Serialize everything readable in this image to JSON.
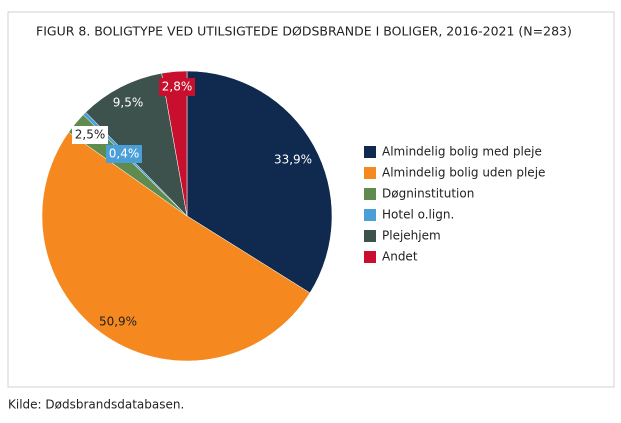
{
  "chart_data": {
    "type": "pie",
    "title": "FIGUR 8. BOLIGTYPE VED UTILSIGTEDE DØDSBRANDE I BOLIGER, 2016-2021 (N=283)",
    "categories": [
      "Almindelig bolig med pleje",
      "Almindelig bolig uden pleje",
      "Døgninstitution",
      "Hotel o.lign.",
      "Plejehjem",
      "Andet"
    ],
    "values": [
      33.9,
      50.9,
      2.5,
      0.4,
      9.5,
      2.8
    ],
    "value_labels": [
      "33,9%",
      "50,9%",
      "2,5%",
      "0,4%",
      "9,5%",
      "2,8%"
    ],
    "colors": [
      "#0f2a4e",
      "#f5891f",
      "#5f8b4f",
      "#4a9fd8",
      "#3d524d",
      "#c8102e"
    ],
    "legend": "right",
    "source": "Kilde: Dødsbrandsdatabasen."
  }
}
